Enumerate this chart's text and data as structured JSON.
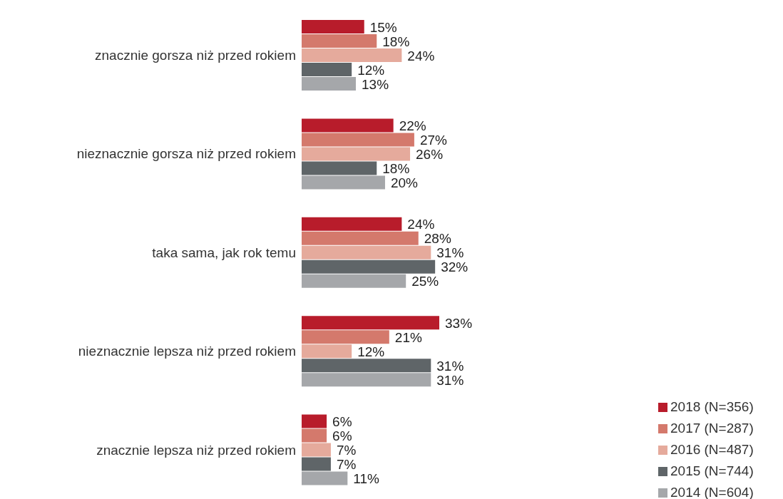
{
  "chart_data": {
    "type": "bar",
    "orientation": "horizontal",
    "legend": "bottom right",
    "categories": [
      "znacznie gorsza niż przed rokiem",
      "nieznacznie gorsza niż przed rokiem",
      "taka sama, jak rok temu",
      "nieznacznie lepsza niż przed rokiem",
      "znacznie lepsza niż przed rokiem"
    ],
    "series": [
      {
        "name": "2018 (N=356)",
        "color": "#b81c2b",
        "values": [
          15,
          22,
          24,
          33,
          6
        ],
        "value_labels": [
          "15%",
          "22%",
          "24%",
          "33%",
          "6%"
        ]
      },
      {
        "name": "2017 (N=287)",
        "color": "#d4796c",
        "values": [
          18,
          27,
          28,
          21,
          6
        ],
        "value_labels": [
          "18%",
          "27%",
          "28%",
          "21%",
          "6%"
        ]
      },
      {
        "name": "2016 (N=487)",
        "color": "#e5aa9c",
        "values": [
          24,
          26,
          31,
          12,
          7
        ],
        "value_labels": [
          "24%",
          "26%",
          "31%",
          "12%",
          "7%"
        ]
      },
      {
        "name": "2015 (N=744)",
        "color": "#5f6568",
        "values": [
          12,
          18,
          32,
          31,
          7
        ],
        "value_labels": [
          "12%",
          "18%",
          "32%",
          "31%",
          "7%"
        ]
      },
      {
        "name": "2014 (N=604)",
        "color": "#a5a7aa",
        "values": [
          13,
          20,
          25,
          31,
          11
        ],
        "value_labels": [
          "13%",
          "20%",
          "25%",
          "31%",
          "11%"
        ]
      }
    ]
  }
}
